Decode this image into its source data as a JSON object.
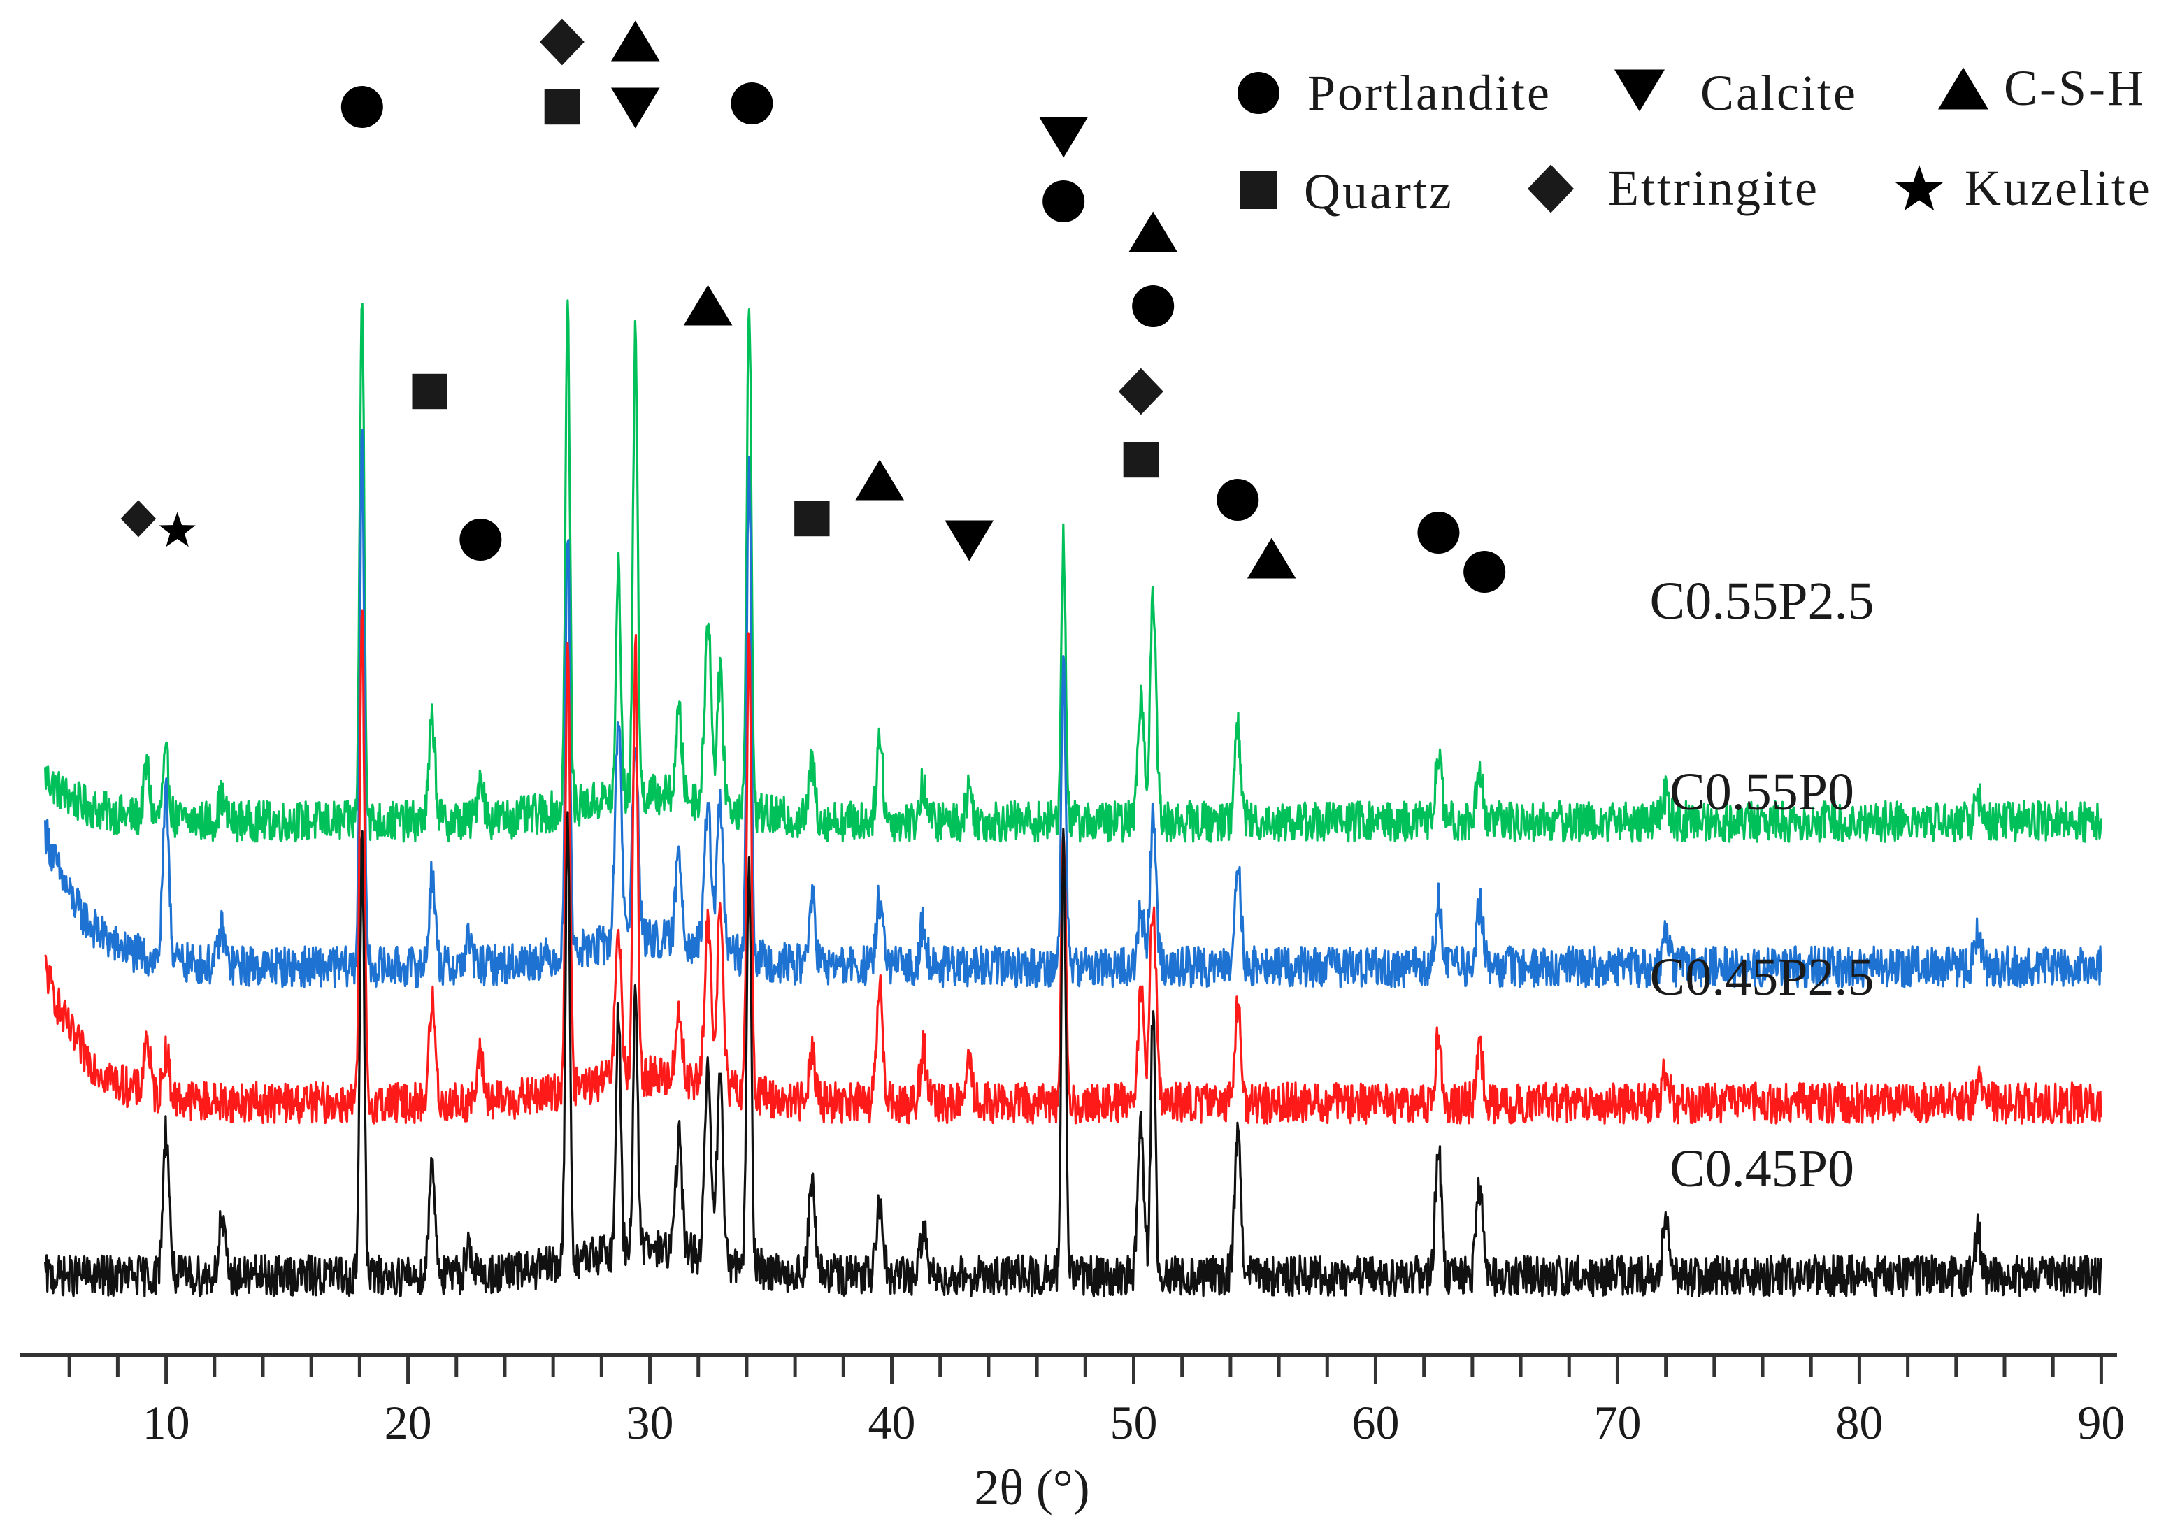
{
  "chart_data": {
    "type": "line",
    "title": "",
    "xlabel": "2θ (°)",
    "ylabel": "",
    "xlim": [
      4,
      91
    ],
    "xticks": [
      10,
      20,
      30,
      40,
      50,
      60,
      70,
      80,
      90
    ],
    "xtick_labels": [
      "10",
      "20",
      "30",
      "40",
      "50",
      "60",
      "70",
      "80",
      "90"
    ],
    "minor_tick_step": 2,
    "y_offset_stacked": true,
    "series": [
      {
        "name": "C0.55P2.5",
        "color": "#00c05a",
        "baseline": 1.0,
        "start_rise": 0.1,
        "noise": 0.045,
        "peaks": [
          [
            9.2,
            0.11
          ],
          [
            10.0,
            0.13
          ],
          [
            12.3,
            0.05
          ],
          [
            18.1,
            1.15
          ],
          [
            21.0,
            0.22
          ],
          [
            23.0,
            0.1
          ],
          [
            26.6,
            1.1
          ],
          [
            28.7,
            0.52
          ],
          [
            29.4,
            1.05
          ],
          [
            31.2,
            0.18
          ],
          [
            32.4,
            0.42
          ],
          [
            32.9,
            0.28
          ],
          [
            34.1,
            1.15
          ],
          [
            36.7,
            0.12
          ],
          [
            39.5,
            0.18
          ],
          [
            41.3,
            0.08
          ],
          [
            43.2,
            0.07
          ],
          [
            47.1,
            0.62
          ],
          [
            50.3,
            0.28
          ],
          [
            50.8,
            0.48
          ],
          [
            54.3,
            0.2
          ],
          [
            62.6,
            0.15
          ],
          [
            64.3,
            0.12
          ],
          [
            72.0,
            0.06
          ],
          [
            84.9,
            0.05
          ]
        ]
      },
      {
        "name": "C0.55P0",
        "color": "#1e73d2",
        "baseline": 0.68,
        "start_rise": 0.3,
        "noise": 0.045,
        "peaks": [
          [
            10.0,
            0.36
          ],
          [
            12.3,
            0.08
          ],
          [
            18.1,
            1.15
          ],
          [
            21.0,
            0.2
          ],
          [
            22.5,
            0.06
          ],
          [
            26.6,
            0.95
          ],
          [
            28.7,
            0.5
          ],
          [
            29.4,
            0.42
          ],
          [
            31.2,
            0.2
          ],
          [
            32.4,
            0.33
          ],
          [
            32.9,
            0.32
          ],
          [
            34.1,
            1.1
          ],
          [
            36.7,
            0.15
          ],
          [
            39.5,
            0.15
          ],
          [
            41.3,
            0.1
          ],
          [
            47.1,
            0.68
          ],
          [
            50.3,
            0.12
          ],
          [
            50.8,
            0.32
          ],
          [
            54.3,
            0.24
          ],
          [
            62.6,
            0.15
          ],
          [
            64.3,
            0.14
          ],
          [
            72.0,
            0.1
          ],
          [
            84.9,
            0.08
          ]
        ]
      },
      {
        "name": "C0.45P2.5",
        "color": "#ff1a1a",
        "baseline": 0.38,
        "start_rise": 0.3,
        "noise": 0.045,
        "peaks": [
          [
            9.2,
            0.12
          ],
          [
            10.0,
            0.1
          ],
          [
            18.1,
            1.1
          ],
          [
            21.0,
            0.22
          ],
          [
            23.0,
            0.1
          ],
          [
            26.6,
            1.0
          ],
          [
            28.7,
            0.32
          ],
          [
            29.4,
            0.95
          ],
          [
            31.2,
            0.15
          ],
          [
            32.4,
            0.37
          ],
          [
            32.9,
            0.38
          ],
          [
            34.1,
            1.05
          ],
          [
            36.7,
            0.12
          ],
          [
            39.5,
            0.25
          ],
          [
            41.3,
            0.12
          ],
          [
            43.2,
            0.08
          ],
          [
            47.1,
            0.62
          ],
          [
            50.3,
            0.25
          ],
          [
            50.8,
            0.45
          ],
          [
            54.3,
            0.22
          ],
          [
            62.6,
            0.14
          ],
          [
            64.3,
            0.13
          ],
          [
            72.0,
            0.07
          ],
          [
            84.9,
            0.05
          ]
        ]
      },
      {
        "name": "C0.45P0",
        "color": "#111111",
        "baseline": 0.0,
        "start_rise": 0.0,
        "noise": 0.045,
        "peaks": [
          [
            10.0,
            0.32
          ],
          [
            12.3,
            0.12
          ],
          [
            18.1,
            0.95
          ],
          [
            21.0,
            0.25
          ],
          [
            22.5,
            0.07
          ],
          [
            26.6,
            0.98
          ],
          [
            28.7,
            0.55
          ],
          [
            29.4,
            0.58
          ],
          [
            31.2,
            0.25
          ],
          [
            32.4,
            0.4
          ],
          [
            32.9,
            0.38
          ],
          [
            34.1,
            0.9
          ],
          [
            36.7,
            0.2
          ],
          [
            39.5,
            0.15
          ],
          [
            41.3,
            0.1
          ],
          [
            47.1,
            0.95
          ],
          [
            50.3,
            0.32
          ],
          [
            50.8,
            0.6
          ],
          [
            54.3,
            0.3
          ],
          [
            62.6,
            0.28
          ],
          [
            64.3,
            0.2
          ],
          [
            72.0,
            0.12
          ],
          [
            84.9,
            0.1
          ]
        ]
      }
    ],
    "series_labels": [
      "C0.55P2.5",
      "C0.55P0",
      "C0.45P2.5",
      "C0.45P0"
    ],
    "legend": {
      "placement": "top-right",
      "entries": [
        {
          "symbol": "circle",
          "label": "Portlandite"
        },
        {
          "symbol": "triangle-down",
          "label": "Calcite"
        },
        {
          "symbol": "triangle-up",
          "label": "C-S-H"
        },
        {
          "symbol": "square",
          "label": "Quartz"
        },
        {
          "symbol": "diamond",
          "label": "Ettringite"
        },
        {
          "symbol": "star",
          "label": "Kuzelite"
        }
      ]
    },
    "phase_markers": [
      {
        "two_theta": 9.2,
        "symbol": "diamond"
      },
      {
        "two_theta": 10.0,
        "symbol": "star"
      },
      {
        "two_theta": 18.1,
        "symbol": "circle"
      },
      {
        "two_theta": 20.9,
        "symbol": "square"
      },
      {
        "two_theta": 23.0,
        "symbol": "circle"
      },
      {
        "two_theta": 26.6,
        "symbol": "diamond"
      },
      {
        "two_theta": 26.6,
        "symbol": "square"
      },
      {
        "two_theta": 29.4,
        "symbol": "triangle-up"
      },
      {
        "two_theta": 29.4,
        "symbol": "triangle-down"
      },
      {
        "two_theta": 32.4,
        "symbol": "triangle-up"
      },
      {
        "two_theta": 34.1,
        "symbol": "circle"
      },
      {
        "two_theta": 36.7,
        "symbol": "square"
      },
      {
        "two_theta": 39.5,
        "symbol": "triangle-up"
      },
      {
        "two_theta": 43.2,
        "symbol": "triangle-down"
      },
      {
        "two_theta": 47.1,
        "symbol": "triangle-down"
      },
      {
        "two_theta": 47.1,
        "symbol": "circle"
      },
      {
        "two_theta": 50.3,
        "symbol": "diamond"
      },
      {
        "two_theta": 50.3,
        "symbol": "square"
      },
      {
        "two_theta": 50.8,
        "symbol": "triangle-up"
      },
      {
        "two_theta": 50.8,
        "symbol": "circle"
      },
      {
        "two_theta": 54.3,
        "symbol": "circle"
      },
      {
        "two_theta": 55.7,
        "symbol": "triangle-up"
      },
      {
        "two_theta": 62.6,
        "symbol": "circle"
      },
      {
        "two_theta": 64.5,
        "symbol": "circle"
      }
    ]
  }
}
